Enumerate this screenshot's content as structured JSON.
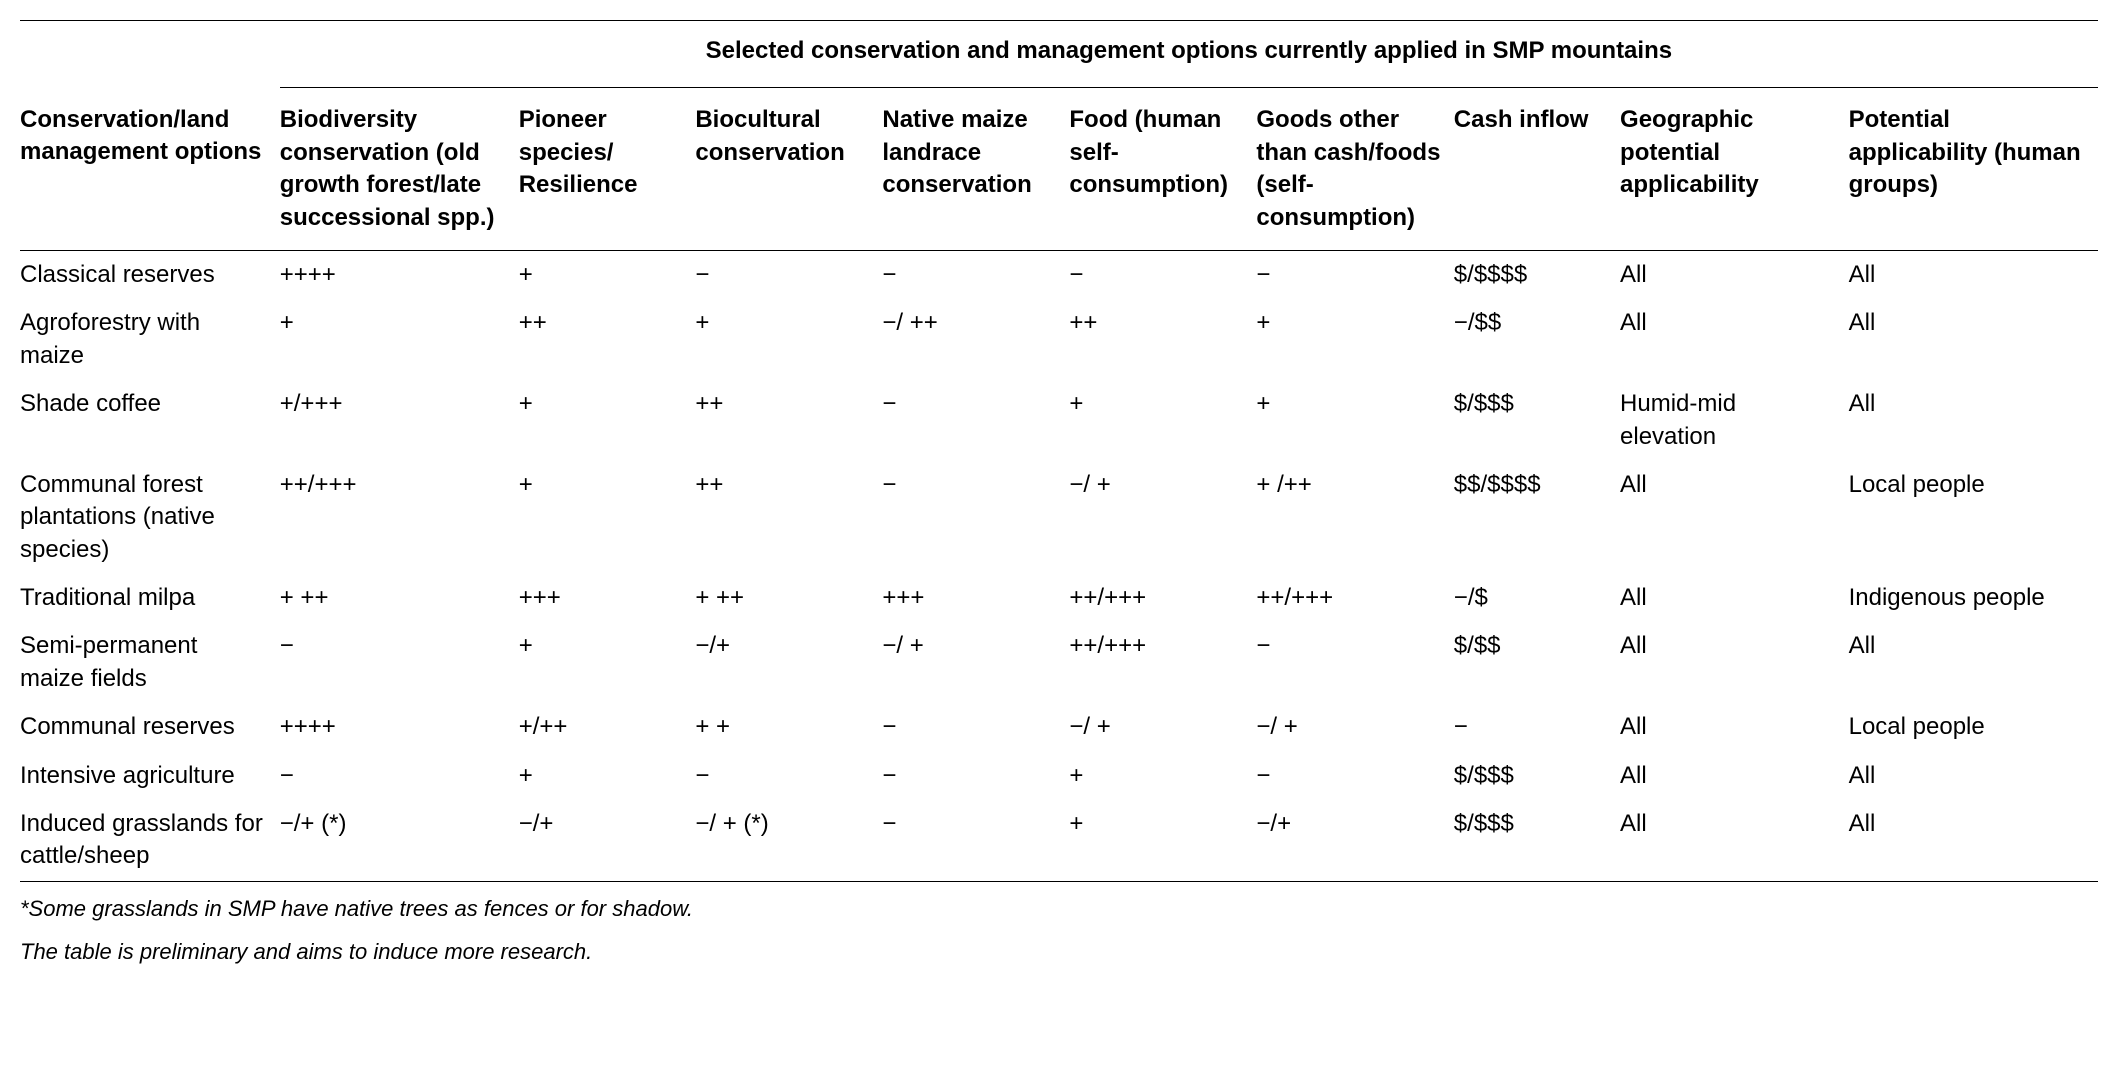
{
  "table": {
    "super_header": "Selected conservation and management options currently applied in SMP mountains",
    "columns": [
      "Conservation/land management options",
      "Biodiversity conservation (old growth forest/late successional spp.)",
      "Pioneer species/ Resilience",
      "Biocultural conservation",
      "Native maize landrace conservation",
      "Food (human self-consumption)",
      "Goods other than cash/foods (self-consumption)",
      "Cash inflow",
      "Geographic potential applicability",
      "Potential applicability (human groups)"
    ],
    "column_widths_pct": [
      12.5,
      11.5,
      8.5,
      9,
      9,
      9,
      9.5,
      8,
      11,
      12
    ],
    "rows": [
      [
        "Classical reserves",
        "++++",
        "+",
        "−",
        "−",
        "−",
        "−",
        "$/$$$$",
        "All",
        "All"
      ],
      [
        "Agroforestry with maize",
        "+",
        "++",
        "+",
        "−/ ++",
        "++",
        "+",
        "−/$$",
        "All",
        "All"
      ],
      [
        "Shade coffee",
        "+/+++",
        "+",
        "++",
        "−",
        "+",
        "+",
        "$/$$$",
        "Humid-mid elevation",
        "All"
      ],
      [
        "Communal forest plantations (native species)",
        "++/+++",
        "+",
        "++",
        "−",
        "−/ +",
        "+ /++",
        "$$/$$$$",
        "All",
        "Local people"
      ],
      [
        "Traditional milpa",
        "+ ++",
        "+++",
        "+ ++",
        "+++",
        "++/+++",
        "++/+++",
        "−/$",
        "All",
        "Indigenous people"
      ],
      [
        "Semi-permanent maize fields",
        "−",
        "+",
        "−/+",
        "−/ +",
        "++/+++",
        "−",
        "$/$$",
        "All",
        "All"
      ],
      [
        "Communal reserves",
        "++++",
        "+/++",
        "+ +",
        "−",
        "−/ +",
        "−/ +",
        "−",
        "All",
        "Local people"
      ],
      [
        "Intensive agriculture",
        "−",
        "+",
        "−",
        "−",
        "+",
        "−",
        "$/$$$",
        "All",
        "All"
      ],
      [
        "Induced grasslands for cattle/sheep",
        "−/+ (*)",
        "−/+",
        "−/ + (*)",
        "−",
        "+",
        "−/+",
        "$/$$$",
        "All",
        "All"
      ]
    ],
    "footnotes": [
      "*Some grasslands in SMP have native trees as fences or for shadow.",
      "The table is preliminary and aims to induce more research."
    ],
    "text_color": "#000000",
    "background_color": "#ffffff",
    "border_color": "#000000",
    "header_fontsize": 24,
    "body_fontsize": 24,
    "footnote_fontsize": 22
  }
}
